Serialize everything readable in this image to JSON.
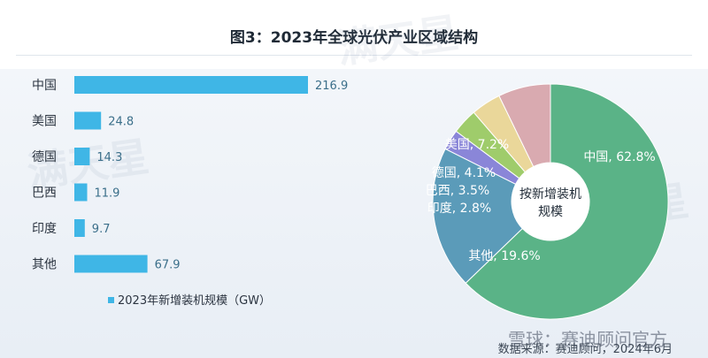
{
  "title": "图3：2023年全球光伏产业区域结构",
  "source": "数据来源：赛迪顾问，2024年6月",
  "watermarks": [
    "满天星",
    "雪球：赛迪顾问官方"
  ],
  "chart_data": [
    {
      "type": "bar",
      "orientation": "horizontal",
      "categories": [
        "中国",
        "美国",
        "德国",
        "巴西",
        "印度",
        "其他"
      ],
      "series": [
        {
          "name": "2023年新增装机规模（GW）",
          "values": [
            216.9,
            24.8,
            14.3,
            11.9,
            9.7,
            67.9
          ],
          "color": "#3fb6e6"
        }
      ],
      "legend_position": "bottom-left",
      "grid": false
    },
    {
      "type": "pie",
      "donut": true,
      "center_label": "按新增装机规模",
      "slices": [
        {
          "name": "中国",
          "value": 62.8,
          "label": "中国, 62.8%",
          "color": "#5ab387"
        },
        {
          "name": "其他",
          "value": 19.6,
          "label": "其他, 19.6%",
          "color": "#5b9bb9"
        },
        {
          "name": "印度",
          "value": 2.8,
          "label": "印度, 2.8%",
          "color": "#8a86d8"
        },
        {
          "name": "巴西",
          "value": 3.5,
          "label": "巴西, 3.5%",
          "color": "#9fcc6b"
        },
        {
          "name": "德国",
          "value": 4.1,
          "label": "德国, 4.1%",
          "color": "#ead79a"
        },
        {
          "name": "美国",
          "value": 7.2,
          "label": "美国, 7.2%",
          "color": "#d9aab0"
        }
      ]
    }
  ]
}
